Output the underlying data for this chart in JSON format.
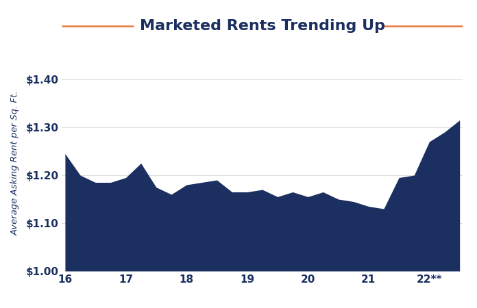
{
  "title": "Marketed Rents Trending Up",
  "title_color": "#1b3060",
  "title_fontsize": 16,
  "title_fontweight": "bold",
  "accent_color": "#e87a3f",
  "fill_color": "#1b3060",
  "ylabel": "Average Asking Rent per Sq. Ft.",
  "ylabel_color": "#1b3060",
  "background_color": "#ffffff",
  "ylim": [
    1.0,
    1.45
  ],
  "yticks": [
    1.0,
    1.1,
    1.2,
    1.3,
    1.4
  ],
  "ytick_labels": [
    "$1.00",
    "$1.10",
    "$1.20",
    "$1.30",
    "$1.40"
  ],
  "xtick_labels": [
    "16",
    "17",
    "18",
    "19",
    "20",
    "21",
    "22**"
  ],
  "x": [
    0,
    0.5,
    1,
    1.5,
    2,
    2.5,
    3,
    3.5,
    4,
    4.5,
    5,
    5.5,
    6,
    6.5,
    7,
    7.5,
    8,
    8.5,
    9,
    9.5,
    10,
    10.5,
    11,
    11.5,
    12,
    12.5,
    13
  ],
  "y": [
    1.245,
    1.2,
    1.185,
    1.185,
    1.195,
    1.225,
    1.175,
    1.16,
    1.18,
    1.185,
    1.19,
    1.165,
    1.165,
    1.17,
    1.155,
    1.165,
    1.155,
    1.165,
    1.15,
    1.145,
    1.135,
    1.13,
    1.195,
    1.2,
    1.27,
    1.29,
    1.315
  ],
  "xtick_positions": [
    0,
    2,
    4,
    6,
    8,
    10,
    12
  ],
  "gridline_color": "#dddddd",
  "tick_label_fontsize": 11
}
